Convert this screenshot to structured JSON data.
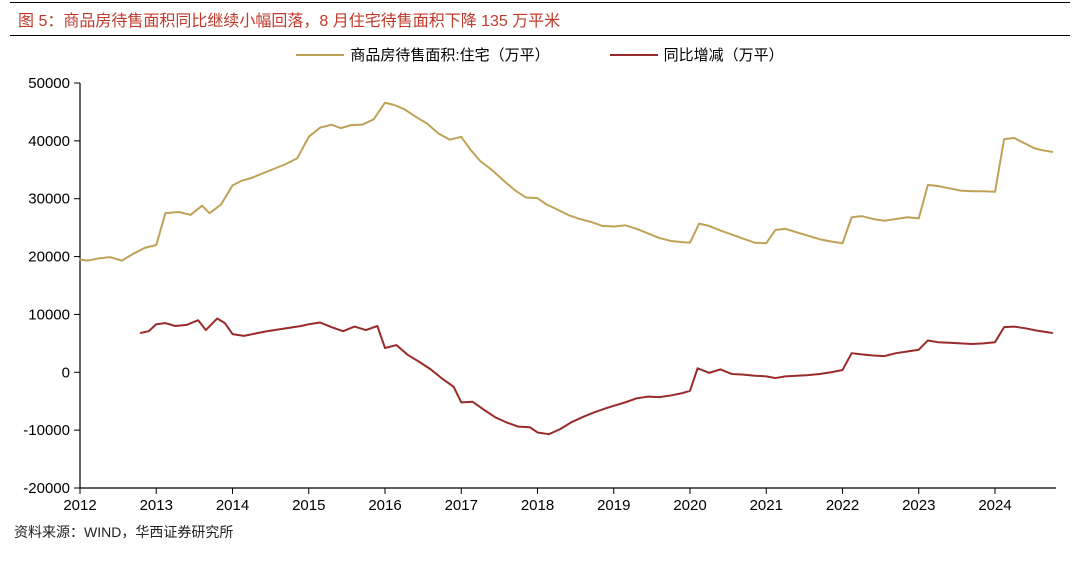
{
  "title": "图 5：商品房待售面积同比继续小幅回落，8 月住宅待售面积下降 135 万平米",
  "footer": "资料来源：WIND，华西证券研究所",
  "legend": [
    {
      "label": "商品房待售面积:住宅（万平）",
      "color": "#bfa256"
    },
    {
      "label": "同比增减（万平）",
      "color": "#9a2b2b"
    }
  ],
  "chart": {
    "type": "line",
    "background_color": "#ffffff",
    "axis_color": "#000000",
    "tick_color": "#000000",
    "line_width": 2,
    "title_fontsize": 16,
    "label_fontsize": 15,
    "xlim": [
      2012,
      2024.8
    ],
    "ylim": [
      -20000,
      50000
    ],
    "ytick_step": 10000,
    "y_ticks": [
      -20000,
      -10000,
      0,
      10000,
      20000,
      30000,
      40000,
      50000
    ],
    "x_ticks": [
      2012,
      2013,
      2014,
      2015,
      2016,
      2017,
      2018,
      2019,
      2020,
      2021,
      2022,
      2023,
      2024
    ],
    "series": [
      {
        "name": "residential_for_sale",
        "color": "#bfa256",
        "points": [
          [
            2012.0,
            19500
          ],
          [
            2012.1,
            19300
          ],
          [
            2012.25,
            19700
          ],
          [
            2012.4,
            19900
          ],
          [
            2012.55,
            19300
          ],
          [
            2012.7,
            20500
          ],
          [
            2012.85,
            21500
          ],
          [
            2013.0,
            22000
          ],
          [
            2013.12,
            27500
          ],
          [
            2013.3,
            27700
          ],
          [
            2013.45,
            27200
          ],
          [
            2013.6,
            28800
          ],
          [
            2013.7,
            27500
          ],
          [
            2013.85,
            29000
          ],
          [
            2014.0,
            32300
          ],
          [
            2014.12,
            33100
          ],
          [
            2014.25,
            33600
          ],
          [
            2014.4,
            34400
          ],
          [
            2014.55,
            35200
          ],
          [
            2014.7,
            36000
          ],
          [
            2014.85,
            37000
          ],
          [
            2015.0,
            40700
          ],
          [
            2015.15,
            42300
          ],
          [
            2015.3,
            42800
          ],
          [
            2015.42,
            42200
          ],
          [
            2015.55,
            42700
          ],
          [
            2015.7,
            42800
          ],
          [
            2015.85,
            43700
          ],
          [
            2016.0,
            46600
          ],
          [
            2016.12,
            46200
          ],
          [
            2016.25,
            45500
          ],
          [
            2016.4,
            44200
          ],
          [
            2016.55,
            43000
          ],
          [
            2016.7,
            41300
          ],
          [
            2016.85,
            40200
          ],
          [
            2017.0,
            40700
          ],
          [
            2017.12,
            38500
          ],
          [
            2017.25,
            36500
          ],
          [
            2017.4,
            35000
          ],
          [
            2017.55,
            33200
          ],
          [
            2017.7,
            31500
          ],
          [
            2017.85,
            30200
          ],
          [
            2018.0,
            30100
          ],
          [
            2018.12,
            29000
          ],
          [
            2018.25,
            28200
          ],
          [
            2018.4,
            27200
          ],
          [
            2018.55,
            26500
          ],
          [
            2018.7,
            26000
          ],
          [
            2018.85,
            25300
          ],
          [
            2019.0,
            25200
          ],
          [
            2019.15,
            25400
          ],
          [
            2019.3,
            24800
          ],
          [
            2019.45,
            24000
          ],
          [
            2019.6,
            23200
          ],
          [
            2019.75,
            22700
          ],
          [
            2019.9,
            22500
          ],
          [
            2020.0,
            22400
          ],
          [
            2020.12,
            25700
          ],
          [
            2020.25,
            25300
          ],
          [
            2020.4,
            24500
          ],
          [
            2020.55,
            23800
          ],
          [
            2020.7,
            23100
          ],
          [
            2020.85,
            22400
          ],
          [
            2021.0,
            22300
          ],
          [
            2021.12,
            24600
          ],
          [
            2021.25,
            24800
          ],
          [
            2021.4,
            24200
          ],
          [
            2021.55,
            23600
          ],
          [
            2021.7,
            23000
          ],
          [
            2021.85,
            22600
          ],
          [
            2022.0,
            22300
          ],
          [
            2022.12,
            26800
          ],
          [
            2022.25,
            27000
          ],
          [
            2022.4,
            26500
          ],
          [
            2022.55,
            26200
          ],
          [
            2022.7,
            26500
          ],
          [
            2022.85,
            26800
          ],
          [
            2023.0,
            26600
          ],
          [
            2023.12,
            32400
          ],
          [
            2023.25,
            32200
          ],
          [
            2023.4,
            31800
          ],
          [
            2023.55,
            31400
          ],
          [
            2023.7,
            31300
          ],
          [
            2023.85,
            31300
          ],
          [
            2024.0,
            31200
          ],
          [
            2024.12,
            40300
          ],
          [
            2024.25,
            40500
          ],
          [
            2024.4,
            39500
          ],
          [
            2024.52,
            38700
          ],
          [
            2024.65,
            38300
          ],
          [
            2024.75,
            38100
          ]
        ]
      },
      {
        "name": "yoy_change",
        "color": "#9a2b2b",
        "points": [
          [
            2012.8,
            6800
          ],
          [
            2012.9,
            7100
          ],
          [
            2013.0,
            8300
          ],
          [
            2013.12,
            8500
          ],
          [
            2013.25,
            8000
          ],
          [
            2013.4,
            8200
          ],
          [
            2013.55,
            9000
          ],
          [
            2013.65,
            7300
          ],
          [
            2013.8,
            9300
          ],
          [
            2013.9,
            8500
          ],
          [
            2014.0,
            6600
          ],
          [
            2014.15,
            6300
          ],
          [
            2014.3,
            6700
          ],
          [
            2014.45,
            7100
          ],
          [
            2014.6,
            7400
          ],
          [
            2014.75,
            7700
          ],
          [
            2014.9,
            8000
          ],
          [
            2015.0,
            8300
          ],
          [
            2015.15,
            8600
          ],
          [
            2015.3,
            7800
          ],
          [
            2015.45,
            7100
          ],
          [
            2015.6,
            7900
          ],
          [
            2015.75,
            7300
          ],
          [
            2015.9,
            8000
          ],
          [
            2016.0,
            4200
          ],
          [
            2016.15,
            4700
          ],
          [
            2016.3,
            3000
          ],
          [
            2016.45,
            1800
          ],
          [
            2016.6,
            500
          ],
          [
            2016.75,
            -1100
          ],
          [
            2016.9,
            -2500
          ],
          [
            2017.0,
            -5200
          ],
          [
            2017.15,
            -5100
          ],
          [
            2017.3,
            -6500
          ],
          [
            2017.45,
            -7800
          ],
          [
            2017.6,
            -8700
          ],
          [
            2017.75,
            -9400
          ],
          [
            2017.9,
            -9500
          ],
          [
            2018.0,
            -10400
          ],
          [
            2018.15,
            -10700
          ],
          [
            2018.3,
            -9800
          ],
          [
            2018.45,
            -8600
          ],
          [
            2018.6,
            -7700
          ],
          [
            2018.75,
            -6900
          ],
          [
            2018.9,
            -6200
          ],
          [
            2019.0,
            -5800
          ],
          [
            2019.15,
            -5200
          ],
          [
            2019.3,
            -4500
          ],
          [
            2019.45,
            -4200
          ],
          [
            2019.6,
            -4300
          ],
          [
            2019.75,
            -4000
          ],
          [
            2019.9,
            -3600
          ],
          [
            2020.0,
            -3200
          ],
          [
            2020.1,
            700
          ],
          [
            2020.25,
            -100
          ],
          [
            2020.4,
            500
          ],
          [
            2020.55,
            -300
          ],
          [
            2020.7,
            -400
          ],
          [
            2020.85,
            -600
          ],
          [
            2021.0,
            -700
          ],
          [
            2021.12,
            -1000
          ],
          [
            2021.25,
            -700
          ],
          [
            2021.4,
            -600
          ],
          [
            2021.55,
            -500
          ],
          [
            2021.7,
            -300
          ],
          [
            2021.85,
            0
          ],
          [
            2022.0,
            400
          ],
          [
            2022.12,
            3300
          ],
          [
            2022.25,
            3100
          ],
          [
            2022.4,
            2900
          ],
          [
            2022.55,
            2800
          ],
          [
            2022.7,
            3300
          ],
          [
            2022.85,
            3600
          ],
          [
            2023.0,
            3900
          ],
          [
            2023.12,
            5500
          ],
          [
            2023.25,
            5200
          ],
          [
            2023.4,
            5100
          ],
          [
            2023.55,
            5000
          ],
          [
            2023.7,
            4900
          ],
          [
            2023.85,
            5000
          ],
          [
            2024.0,
            5200
          ],
          [
            2024.12,
            7800
          ],
          [
            2024.25,
            7900
          ],
          [
            2024.4,
            7600
          ],
          [
            2024.55,
            7200
          ],
          [
            2024.7,
            6900
          ],
          [
            2024.75,
            6800
          ]
        ]
      }
    ]
  }
}
